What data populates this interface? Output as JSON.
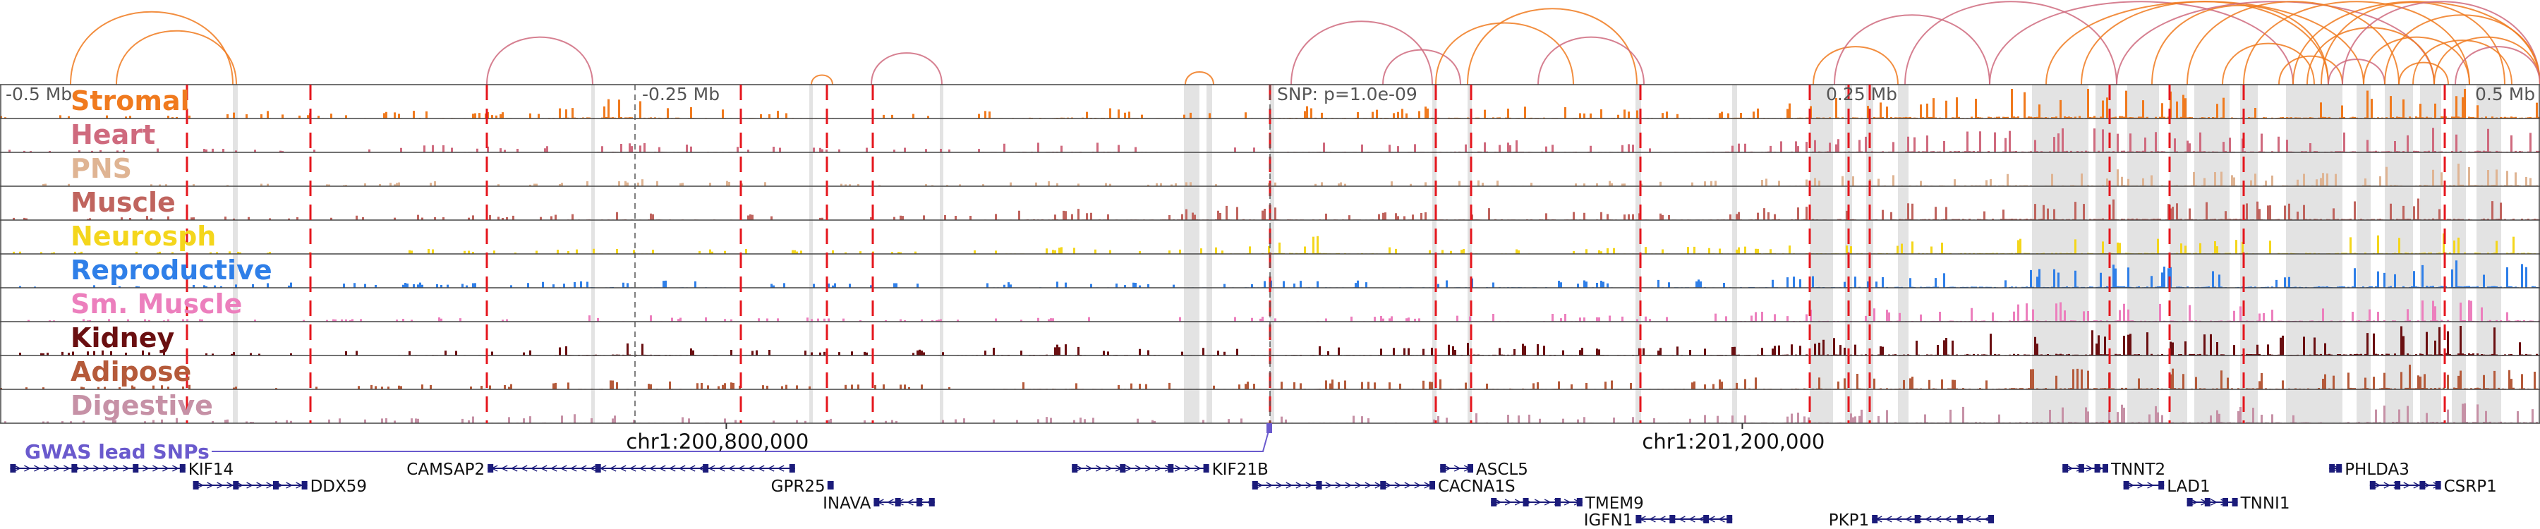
{
  "scale_labels": {
    "left": "-0.5 Mb",
    "quarter_left": "-0.25 Mb",
    "center": "SNP: p=1.0e-09",
    "quarter_right": "0.25 Mb",
    "right": "0.5 Mb"
  },
  "tracks": [
    {
      "name": "Stromal",
      "color": "#f07a1e",
      "profile": [
        1,
        2,
        1,
        3,
        2,
        4,
        2,
        9,
        4,
        3,
        2,
        2,
        6,
        3,
        2,
        5,
        4,
        7,
        4,
        3,
        5,
        8,
        9,
        12,
        15,
        9,
        8,
        11,
        13,
        10
      ]
    },
    {
      "name": "Heart",
      "color": "#cf6a7e",
      "profile": [
        1,
        1,
        2,
        1,
        2,
        3,
        2,
        4,
        3,
        2,
        2,
        2,
        5,
        3,
        2,
        4,
        3,
        6,
        4,
        3,
        5,
        6,
        8,
        9,
        10,
        8,
        7,
        9,
        10,
        9
      ]
    },
    {
      "name": "PNS",
      "color": "#dfb493",
      "profile": [
        1,
        1,
        1,
        1,
        1,
        2,
        1,
        3,
        2,
        2,
        1,
        1,
        2,
        1,
        2,
        2,
        2,
        3,
        2,
        2,
        3,
        4,
        5,
        6,
        7,
        6,
        5,
        7,
        9,
        7
      ]
    },
    {
      "name": "Muscle",
      "color": "#c0645e",
      "profile": [
        1,
        1,
        2,
        1,
        2,
        2,
        2,
        4,
        3,
        2,
        2,
        2,
        5,
        3,
        6,
        4,
        3,
        5,
        4,
        3,
        5,
        6,
        7,
        8,
        9,
        8,
        7,
        8,
        9,
        8
      ]
    },
    {
      "name": "Neurosph",
      "color": "#f4d61c",
      "profile": [
        1,
        1,
        1,
        1,
        1,
        2,
        1,
        3,
        2,
        2,
        1,
        2,
        3,
        2,
        3,
        7,
        2,
        3,
        2,
        3,
        4,
        4,
        5,
        6,
        6,
        6,
        5,
        7,
        8,
        7
      ]
    },
    {
      "name": "Reproductive",
      "color": "#2f7fe8",
      "profile": [
        1,
        1,
        1,
        2,
        2,
        2,
        2,
        4,
        3,
        2,
        2,
        2,
        3,
        2,
        3,
        3,
        3,
        4,
        3,
        3,
        4,
        5,
        6,
        7,
        9,
        8,
        7,
        9,
        11,
        9
      ]
    },
    {
      "name": "Sm. Muscle",
      "color": "#ec7fbd",
      "profile": [
        1,
        1,
        1,
        1,
        1,
        2,
        1,
        3,
        2,
        2,
        1,
        1,
        2,
        2,
        2,
        3,
        2,
        3,
        3,
        2,
        4,
        5,
        6,
        7,
        8,
        7,
        6,
        8,
        10,
        8
      ]
    },
    {
      "name": "Kidney",
      "color": "#6a0f11",
      "profile": [
        1,
        2,
        2,
        1,
        2,
        3,
        2,
        6,
        3,
        2,
        2,
        3,
        5,
        3,
        3,
        4,
        3,
        6,
        4,
        3,
        6,
        7,
        8,
        9,
        10,
        9,
        8,
        10,
        14,
        10
      ]
    },
    {
      "name": "Adipose",
      "color": "#b55a3a",
      "profile": [
        1,
        1,
        2,
        1,
        2,
        2,
        2,
        4,
        3,
        2,
        2,
        2,
        4,
        3,
        3,
        4,
        3,
        5,
        4,
        3,
        5,
        6,
        7,
        8,
        9,
        8,
        7,
        9,
        10,
        9
      ]
    },
    {
      "name": "Digestive",
      "color": "#c691a6",
      "profile": [
        1,
        1,
        2,
        1,
        2,
        2,
        4,
        3,
        3,
        2,
        2,
        2,
        3,
        2,
        2,
        3,
        3,
        4,
        3,
        3,
        4,
        5,
        6,
        7,
        8,
        7,
        6,
        8,
        9,
        8
      ]
    }
  ],
  "snp_label": "GWAS lead SNPs",
  "chrom_labels": [
    {
      "text": "chr1:200,800,000",
      "frac": 0.284
    },
    {
      "text": "chr1:201,200,000",
      "frac": 0.684
    }
  ],
  "genes": [
    {
      "name": "KIF14",
      "row": 0,
      "start": 0.004,
      "end": 0.073,
      "label_side": "right",
      "strand": "-"
    },
    {
      "name": "DDX59",
      "row": 1,
      "start": 0.076,
      "end": 0.121,
      "label_side": "right",
      "strand": "-"
    },
    {
      "name": "CAMSAP2",
      "row": 0,
      "start": 0.192,
      "end": 0.313,
      "label_side": "left",
      "strand": "+"
    },
    {
      "name": "GPR25",
      "row": 1,
      "start": 0.326,
      "end": 0.328,
      "label_side": "left",
      "strand": "+"
    },
    {
      "name": "INAVA",
      "row": 2,
      "start": 0.344,
      "end": 0.368,
      "label_side": "left",
      "strand": "+"
    },
    {
      "name": "KIF21B",
      "row": 0,
      "start": 0.422,
      "end": 0.476,
      "label_side": "right",
      "strand": "-"
    },
    {
      "name": "CACNA1S",
      "row": 1,
      "start": 0.493,
      "end": 0.565,
      "label_side": "right",
      "strand": "-"
    },
    {
      "name": "ASCL5",
      "row": 0,
      "start": 0.567,
      "end": 0.58,
      "label_side": "right",
      "strand": "-"
    },
    {
      "name": "TMEM9",
      "row": 2,
      "start": 0.587,
      "end": 0.623,
      "label_side": "right",
      "strand": "-"
    },
    {
      "name": "IGFN1",
      "row": 3,
      "start": 0.644,
      "end": 0.682,
      "label_side": "left",
      "strand": "+"
    },
    {
      "name": "PKP1",
      "row": 3,
      "start": 0.737,
      "end": 0.785,
      "label_side": "left",
      "strand": "+"
    },
    {
      "name": "TNNT2",
      "row": 0,
      "start": 0.812,
      "end": 0.83,
      "label_side": "right",
      "strand": "-"
    },
    {
      "name": "LAD1",
      "row": 1,
      "start": 0.836,
      "end": 0.852,
      "label_side": "right",
      "strand": "-"
    },
    {
      "name": "TNNI1",
      "row": 2,
      "start": 0.861,
      "end": 0.881,
      "label_side": "right",
      "strand": "-"
    },
    {
      "name": "PHLDA3",
      "row": 0,
      "start": 0.917,
      "end": 0.922,
      "label_side": "right",
      "strand": "-"
    },
    {
      "name": "CSRP1",
      "row": 1,
      "start": 0.933,
      "end": 0.961,
      "label_side": "right",
      "strand": "-"
    }
  ]
}
